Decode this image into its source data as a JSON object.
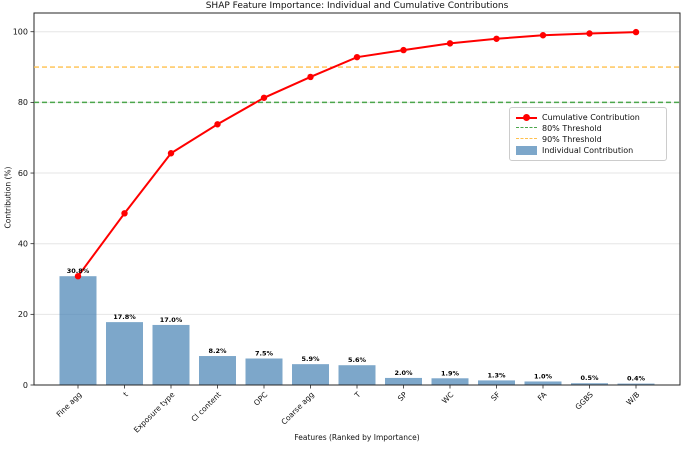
{
  "chart_data": {
    "type": "bar",
    "subtype": "pareto",
    "title": "SHAP Feature Importance: Individual and Cumulative Contributions",
    "xlabel": "Features (Ranked by Importance)",
    "ylabel": "Contribution (%)",
    "categories": [
      "Fine agg",
      "t",
      "Exposure type",
      "Cl content",
      "OPC",
      "Coarse agg",
      "T",
      "SP",
      "WC",
      "SF",
      "FA",
      "GGBS",
      "W/B"
    ],
    "series": [
      {
        "name": "Individual Contribution",
        "type": "bar",
        "color": "rgba(70,130,180,0.7)",
        "values": [
          30.8,
          17.8,
          17.0,
          8.2,
          7.5,
          5.9,
          5.6,
          2.0,
          1.9,
          1.3,
          1.0,
          0.5,
          0.4
        ],
        "labels": [
          "30.8%",
          "17.8%",
          "17.0%",
          "8.2%",
          "7.5%",
          "5.9%",
          "5.6%",
          "2.0%",
          "1.9%",
          "1.3%",
          "1.0%",
          "0.5%",
          "0.4%"
        ]
      },
      {
        "name": "Cumulative Contribution",
        "type": "line",
        "color": "#ff0000",
        "values": [
          30.8,
          48.6,
          65.6,
          73.8,
          81.3,
          87.2,
          92.8,
          94.8,
          96.7,
          98.0,
          99.0,
          99.5,
          99.9
        ]
      }
    ],
    "thresholds": [
      {
        "label": "80% Threshold",
        "value": 80,
        "color": "#4ca64c"
      },
      {
        "label": "90% Threshold",
        "value": 90,
        "color": "#ffc04d"
      }
    ],
    "yticks": [
      0,
      20,
      40,
      60,
      80,
      100
    ],
    "ylim": [
      0,
      105.3
    ],
    "grid": "horizontal",
    "legend": {
      "position": "right",
      "entries": [
        {
          "label": "Cumulative Contribution",
          "type": "line-marker",
          "color": "#ff0000"
        },
        {
          "label": "80% Threshold",
          "type": "dashed",
          "color": "#4ca64c"
        },
        {
          "label": "90% Threshold",
          "type": "dashed",
          "color": "#ffc04d"
        },
        {
          "label": "Individual Contribution",
          "type": "patch",
          "color": "rgba(70,130,180,0.7)"
        }
      ]
    }
  }
}
